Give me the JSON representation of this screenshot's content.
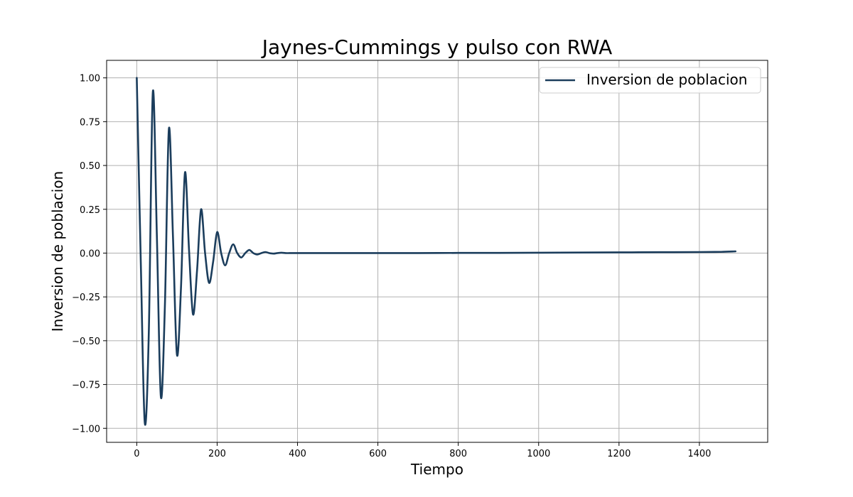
{
  "chart_data": {
    "type": "line",
    "title": "Jaynes-Cummings y pulso con RWA",
    "xlabel": "Tiempo",
    "ylabel": "Inversion de poblacion",
    "xlim": [
      -75,
      1570
    ],
    "ylim": [
      -1.08,
      1.1
    ],
    "xticks": [
      0,
      200,
      400,
      600,
      800,
      1000,
      1200,
      1400
    ],
    "xtick_labels": [
      "0",
      "200",
      "400",
      "600",
      "800",
      "1000",
      "1200",
      "1400"
    ],
    "yticks": [
      -1.0,
      -0.75,
      -0.5,
      -0.25,
      0.0,
      0.25,
      0.5,
      0.75,
      1.0
    ],
    "ytick_labels": [
      "−1.00",
      "−0.75",
      "−0.50",
      "−0.25",
      "0.00",
      "0.25",
      "0.50",
      "0.75",
      "1.00"
    ],
    "grid": true,
    "legend_position": "top-right",
    "series": [
      {
        "name": "Inversion de poblacion",
        "color": "#1b3d5c",
        "x": [
          0,
          10,
          20,
          30,
          40,
          50,
          60,
          70,
          80,
          90,
          100,
          110,
          120,
          130,
          140,
          150,
          160,
          170,
          180,
          190,
          200,
          210,
          220,
          230,
          240,
          250,
          260,
          270,
          280,
          290,
          300,
          310,
          320,
          330,
          340,
          350,
          360,
          370,
          380,
          390,
          400,
          420,
          440,
          460,
          480,
          500,
          600,
          700,
          800,
          900,
          1000,
          1100,
          1200,
          1300,
          1400,
          1450,
          1490
        ],
        "y": [
          1.0,
          -0.05,
          -0.97,
          -0.45,
          0.92,
          0.1,
          -0.82,
          -0.3,
          0.71,
          0.1,
          -0.58,
          -0.2,
          0.46,
          0.02,
          -0.35,
          -0.1,
          0.25,
          0.0,
          -0.17,
          -0.05,
          0.12,
          0.0,
          -0.07,
          0.0,
          0.05,
          0.0,
          -0.025,
          0.0,
          0.018,
          0.0,
          -0.008,
          0.0,
          0.006,
          0.0,
          -0.003,
          0.0,
          0.002,
          0.0,
          0.0,
          0.0,
          0.0,
          0.0,
          0.0,
          0.0,
          0.0,
          0.0,
          0.0,
          0.0,
          0.001,
          0.001,
          0.002,
          0.003,
          0.004,
          0.005,
          0.006,
          0.007,
          0.01
        ]
      }
    ]
  }
}
